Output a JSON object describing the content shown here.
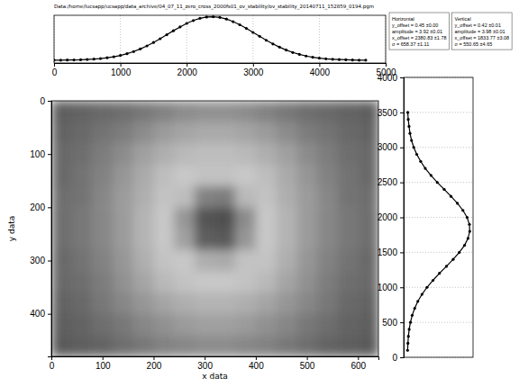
{
  "chart_data": [
    {
      "type": "scatter",
      "title": "Data:/home/lucsapp/ucsapp/data_archive/04_07_11_zero_cross_2000fs01_ov_stability/ov_stability_20140711_152859_0194.pgm",
      "x": [
        0,
        100,
        200,
        300,
        400,
        500,
        600,
        700,
        800,
        900,
        1000,
        1100,
        1200,
        1300,
        1400,
        1500,
        1600,
        1700,
        1800,
        1900,
        2000,
        2100,
        2200,
        2300,
        2400,
        2500,
        2600,
        2700,
        2800,
        2900,
        3000,
        3100,
        3200,
        3300,
        3400,
        3500,
        3600,
        3700,
        3800,
        3900,
        4000,
        4100,
        4200,
        4300,
        4400,
        4500,
        4600,
        4700
      ],
      "values": [
        0.46,
        0.46,
        0.47,
        0.48,
        0.49,
        0.52,
        0.55,
        0.6,
        0.67,
        0.76,
        0.88,
        1.04,
        1.23,
        1.47,
        1.74,
        2.05,
        2.39,
        2.75,
        3.11,
        3.45,
        3.77,
        4.03,
        4.23,
        4.34,
        4.37,
        4.31,
        4.16,
        3.93,
        3.65,
        3.32,
        2.96,
        2.61,
        2.25,
        1.92,
        1.63,
        1.37,
        1.15,
        0.98,
        0.83,
        0.72,
        0.64,
        0.58,
        0.54,
        0.51,
        0.49,
        0.47,
        0.46,
        0.46
      ],
      "color": "#000000",
      "marker": "circle",
      "line_style": "solid",
      "xlim": [
        0,
        5000
      ],
      "xticks": [
        0,
        1000,
        2000,
        3000,
        4000,
        5000
      ],
      "ylim": [
        0.2,
        4.5
      ],
      "grid": true,
      "tick_labels": "x",
      "annotations": [
        {
          "title": "Horizontal",
          "lines": [
            "y_offset = 0.45 ±0.00",
            "amplitude = 3.92 ±0.01",
            "x_offset = 2380.83 ±1.78",
            "σ = 658.37 ±1.11"
          ]
        }
      ]
    },
    {
      "type": "heatmap",
      "xlabel": "x data",
      "ylabel": "y data",
      "color": "gray",
      "xlim": [
        0,
        640
      ],
      "xticks": [
        0,
        100,
        200,
        300,
        400,
        500,
        600
      ],
      "ylim": [
        480,
        0
      ],
      "yticks": [
        0,
        100,
        200,
        300,
        400
      ],
      "grid": false,
      "cells": [
        [
          95,
          100,
          105,
          110,
          120,
          130,
          140,
          145,
          145,
          140,
          130,
          120,
          110,
          105,
          100,
          95
        ],
        [
          100,
          105,
          115,
          125,
          140,
          155,
          165,
          170,
          170,
          165,
          155,
          140,
          125,
          115,
          105,
          100
        ],
        [
          105,
          110,
          125,
          140,
          160,
          175,
          185,
          190,
          190,
          185,
          175,
          160,
          140,
          125,
          110,
          105
        ],
        [
          105,
          115,
          130,
          150,
          170,
          190,
          200,
          195,
          195,
          200,
          190,
          170,
          150,
          130,
          115,
          105
        ],
        [
          110,
          115,
          135,
          155,
          175,
          195,
          190,
          130,
          125,
          185,
          195,
          175,
          155,
          135,
          115,
          110
        ],
        [
          110,
          120,
          135,
          155,
          180,
          200,
          150,
          85,
          80,
          140,
          200,
          180,
          155,
          135,
          120,
          110
        ],
        [
          110,
          120,
          135,
          155,
          180,
          200,
          160,
          95,
          90,
          150,
          200,
          180,
          155,
          135,
          120,
          110
        ],
        [
          105,
          115,
          130,
          150,
          175,
          195,
          200,
          175,
          170,
          195,
          195,
          175,
          150,
          130,
          115,
          105
        ],
        [
          105,
          110,
          125,
          145,
          165,
          185,
          195,
          200,
          200,
          195,
          185,
          165,
          145,
          125,
          110,
          105
        ],
        [
          100,
          105,
          120,
          135,
          150,
          165,
          175,
          180,
          180,
          175,
          165,
          150,
          135,
          120,
          105,
          100
        ],
        [
          95,
          100,
          110,
          120,
          135,
          145,
          155,
          160,
          160,
          155,
          145,
          135,
          120,
          110,
          100,
          95
        ],
        [
          90,
          95,
          100,
          110,
          120,
          130,
          135,
          140,
          140,
          135,
          130,
          120,
          110,
          100,
          95,
          90
        ]
      ]
    },
    {
      "type": "scatter",
      "x": [
        0.45,
        0.47,
        0.5,
        0.55,
        0.63,
        0.74,
        0.9,
        1.1,
        1.36,
        1.68,
        2.06,
        2.47,
        2.91,
        3.34,
        3.73,
        4.06,
        4.28,
        4.39,
        4.37,
        4.22,
        3.96,
        3.61,
        3.2,
        2.77,
        2.33,
        1.93,
        1.57,
        1.28,
        1.03,
        0.84,
        0.7,
        0.6,
        0.54,
        0.49,
        0.46
      ],
      "values": [
        100,
        200,
        300,
        400,
        500,
        600,
        700,
        800,
        900,
        1000,
        1100,
        1200,
        1300,
        1400,
        1500,
        1600,
        1700,
        1800,
        1900,
        2000,
        2100,
        2200,
        2300,
        2400,
        2500,
        2600,
        2700,
        2800,
        2900,
        3000,
        3100,
        3200,
        3300,
        3400,
        3500
      ],
      "color": "#000000",
      "marker": "circle",
      "line_style": "solid",
      "xlim": [
        0.2,
        4.6
      ],
      "ylim": [
        0,
        4000
      ],
      "yticks": [
        0,
        500,
        1000,
        1500,
        2000,
        2500,
        3000,
        3500,
        4000
      ],
      "grid": true,
      "tick_labels": "y",
      "annotations": [
        {
          "title": "Vertical",
          "lines": [
            "y_offset = 0.42 ±0.01",
            "amplitude = 3.98 ±0.01",
            "x_offset = 1833.77 ±3.08",
            "σ = 550.65 ±4.65"
          ]
        }
      ]
    }
  ]
}
